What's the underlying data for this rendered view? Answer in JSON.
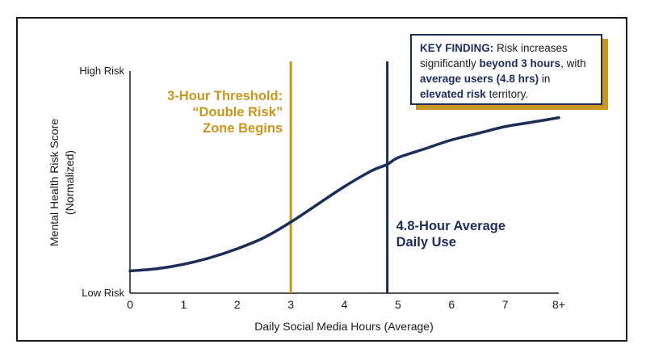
{
  "chart_data": {
    "type": "line",
    "x_tick_labels": [
      "0",
      "1",
      "2",
      "3",
      "4",
      "5",
      "6",
      "7",
      "8+"
    ],
    "y_tick_labels": [
      "Low Risk",
      "High Risk"
    ],
    "xlabel": "Daily Social Media Hours (Average)",
    "ylabel_line1": "Mental Health Risk Score",
    "ylabel_line2": "(Normalized)",
    "xlim": [
      0,
      8
    ],
    "ylim": [
      0,
      1
    ],
    "series": [
      {
        "x": [
          0,
          0.5,
          1,
          1.5,
          2,
          2.5,
          3,
          3.5,
          4,
          4.5,
          4.8,
          5,
          5.5,
          6,
          6.5,
          7,
          7.5,
          8
        ],
        "y": [
          0.1,
          0.11,
          0.13,
          0.16,
          0.2,
          0.25,
          0.32,
          0.4,
          0.48,
          0.55,
          0.58,
          0.61,
          0.65,
          0.69,
          0.72,
          0.75,
          0.77,
          0.79
        ]
      }
    ],
    "vlines": [
      {
        "x": 3,
        "color": "#C9951C",
        "label_lines": [
          "3-Hour Threshold:",
          "“Double Risk”",
          "Zone Begins"
        ]
      },
      {
        "x": 4.8,
        "color": "#1C2D5A",
        "label_lines": [
          "4.8-Hour Average",
          "Daily Use"
        ]
      }
    ],
    "line_color": "#1C2D5A",
    "grid": false
  },
  "key_finding": {
    "lead": "KEY FINDING:",
    "t1": " Risk increases significantly ",
    "b1": "beyond 3 hours",
    "t2": ", with ",
    "b2": "average users (4.8 hrs)",
    "t3": " in ",
    "b3": "elevated risk",
    "t4": " territory."
  },
  "colors": {
    "navy": "#1C2D5A",
    "gold": "#C9951C"
  }
}
